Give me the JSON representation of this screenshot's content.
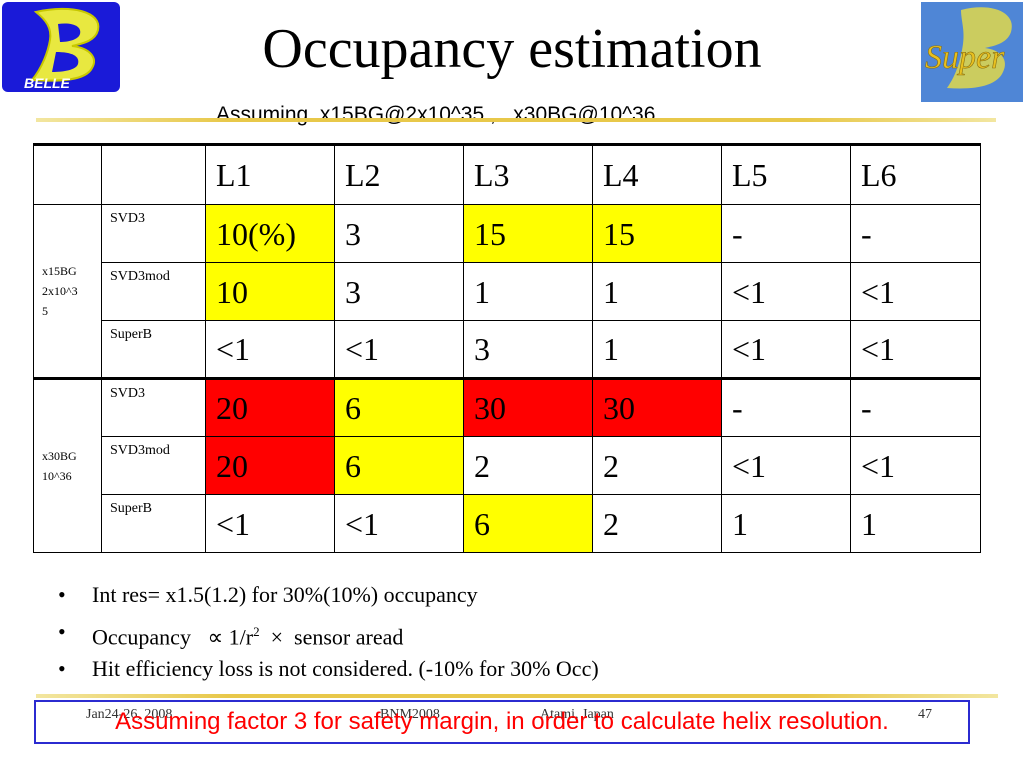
{
  "slide": {
    "title": "Occupancy estimation",
    "subtitle": "Assuming  x15BG@2x10^35 ,   x30BG@10^36"
  },
  "logos": {
    "left_text": "BELLE",
    "right_text": "Super"
  },
  "table": {
    "headers": [
      "L1",
      "L2",
      "L3",
      "L4",
      "L5",
      "L6"
    ],
    "groups": [
      {
        "condition_lines": [
          "x15BG",
          "2x10^3",
          "5"
        ],
        "rows": [
          {
            "detector": "SVD3",
            "cells": [
              {
                "v": "10(%)",
                "c": "yellow"
              },
              {
                "v": "3",
                "c": ""
              },
              {
                "v": "15",
                "c": "yellow"
              },
              {
                "v": "15",
                "c": "yellow"
              },
              {
                "v": "-",
                "c": ""
              },
              {
                "v": "-",
                "c": ""
              }
            ]
          },
          {
            "detector": "SVD3mod",
            "cells": [
              {
                "v": "10",
                "c": "yellow"
              },
              {
                "v": "3",
                "c": ""
              },
              {
                "v": "1",
                "c": ""
              },
              {
                "v": "1",
                "c": ""
              },
              {
                "v": "<1",
                "c": ""
              },
              {
                "v": "<1",
                "c": ""
              }
            ]
          },
          {
            "detector": "SuperB",
            "cells": [
              {
                "v": "<1",
                "c": ""
              },
              {
                "v": "<1",
                "c": ""
              },
              {
                "v": "3",
                "c": ""
              },
              {
                "v": "1",
                "c": ""
              },
              {
                "v": "<1",
                "c": ""
              },
              {
                "v": "<1",
                "c": ""
              }
            ]
          }
        ]
      },
      {
        "condition_lines": [
          "x30BG",
          "10^36"
        ],
        "rows": [
          {
            "detector": "SVD3",
            "cells": [
              {
                "v": "20",
                "c": "red"
              },
              {
                "v": "6",
                "c": "yellow"
              },
              {
                "v": "30",
                "c": "red"
              },
              {
                "v": "30",
                "c": "red"
              },
              {
                "v": "-",
                "c": ""
              },
              {
                "v": "-",
                "c": ""
              }
            ]
          },
          {
            "detector": "SVD3mod",
            "cells": [
              {
                "v": "20",
                "c": "red"
              },
              {
                "v": "6",
                "c": "yellow"
              },
              {
                "v": "2",
                "c": ""
              },
              {
                "v": "2",
                "c": ""
              },
              {
                "v": "<1",
                "c": ""
              },
              {
                "v": "<1",
                "c": ""
              }
            ]
          },
          {
            "detector": "SuperB",
            "cells": [
              {
                "v": "<1",
                "c": ""
              },
              {
                "v": "<1",
                "c": ""
              },
              {
                "v": "6",
                "c": "yellow"
              },
              {
                "v": "2",
                "c": ""
              },
              {
                "v": "1",
                "c": ""
              },
              {
                "v": "1",
                "c": ""
              }
            ]
          }
        ]
      }
    ]
  },
  "bullets": {
    "b1": "Int res= x1.5(1.2) for 30%(10%) occupancy",
    "b2_prefix": "Occupancy   ∝ 1/r",
    "b2_sup": "2",
    "b2_suffix": "  ×  sensor aread",
    "b3": "Hit efficiency loss is not considered. (-10% for 30% Occ)"
  },
  "footer": {
    "date": "Jan24-26, 2008",
    "event": "BNM2008",
    "place": "Atami, Japan",
    "page": "47"
  },
  "note": "Assuming factor 3 for safety margin, in order to calculate helix resolution.",
  "colors": {
    "highlight_yellow": "#ffff00",
    "highlight_red": "#ff0000",
    "note_border": "#2b2bd0",
    "note_text": "#ff0000"
  }
}
